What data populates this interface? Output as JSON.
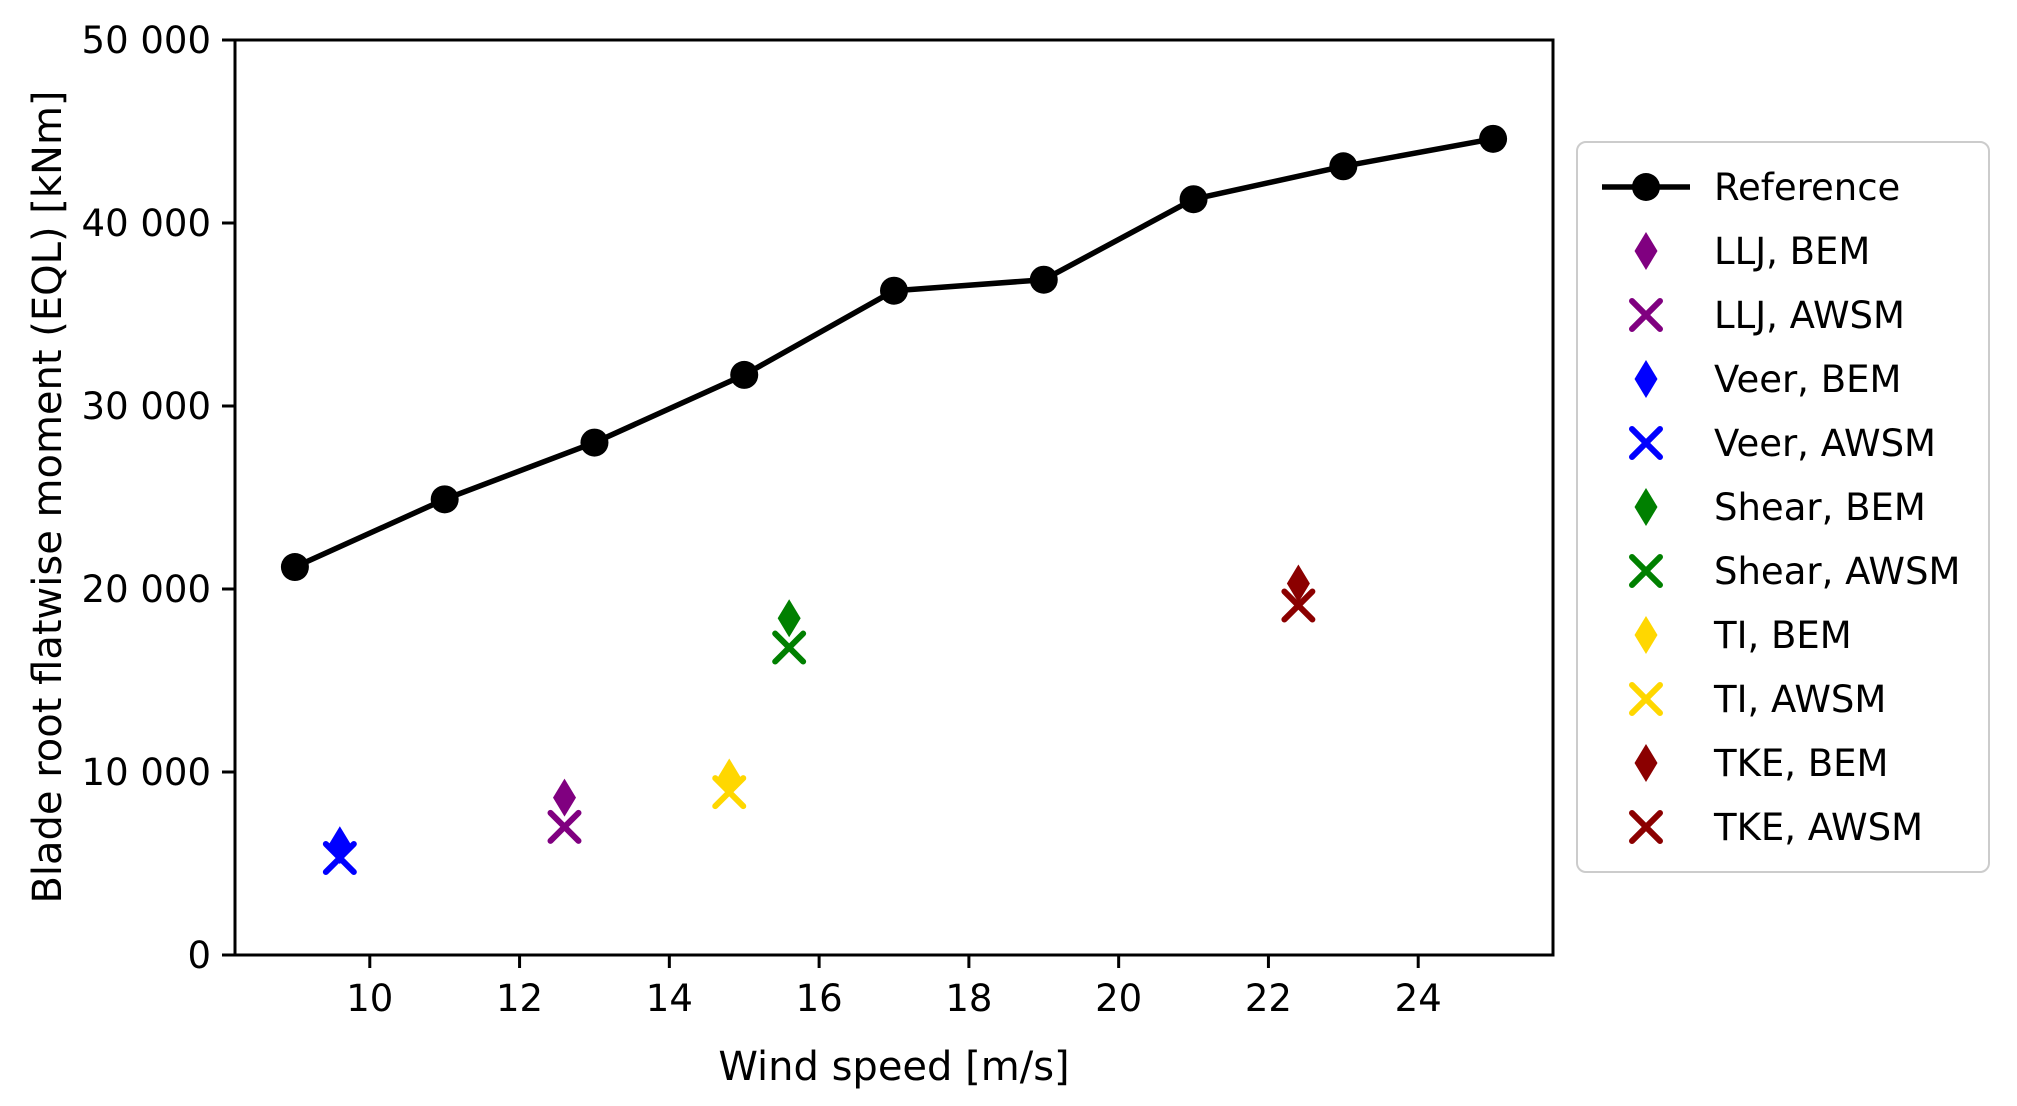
{
  "chart_data": {
    "type": "line",
    "title": "",
    "xlabel": "Wind speed [m/s]",
    "ylabel": "Blade root flatwise moment (EQL) [kNm]",
    "xlim": [
      8.2,
      25.8
    ],
    "ylim": [
      0,
      50000
    ],
    "xticks": [
      10,
      12,
      14,
      16,
      18,
      20,
      22,
      24
    ],
    "xtick_labels": [
      "10",
      "12",
      "14",
      "16",
      "18",
      "20",
      "22",
      "24"
    ],
    "yticks": [
      0,
      10000,
      20000,
      30000,
      40000,
      50000
    ],
    "ytick_labels": [
      "0",
      "10 000",
      "20 000",
      "30 000",
      "40 000",
      "50 000"
    ],
    "grid": false,
    "legend_position": "right",
    "series": [
      {
        "name": "Reference",
        "type": "line",
        "marker": "circle",
        "color": "#000000",
        "x": [
          9,
          11,
          13,
          15,
          17,
          19,
          21,
          23,
          25
        ],
        "y": [
          21200,
          24900,
          28000,
          31700,
          36300,
          36900,
          41300,
          43100,
          44600
        ]
      },
      {
        "name": "LLJ, BEM",
        "type": "scatter",
        "marker": "diamond",
        "color": "#800080",
        "x": [
          12.6
        ],
        "y": [
          8600
        ]
      },
      {
        "name": "LLJ, AWSM",
        "type": "scatter",
        "marker": "x",
        "color": "#800080",
        "x": [
          12.6
        ],
        "y": [
          7000
        ]
      },
      {
        "name": "Veer, BEM",
        "type": "scatter",
        "marker": "diamond",
        "color": "#0000ff",
        "x": [
          9.6
        ],
        "y": [
          6000
        ]
      },
      {
        "name": "Veer, AWSM",
        "type": "scatter",
        "marker": "x",
        "color": "#0000ff",
        "x": [
          9.6
        ],
        "y": [
          5300
        ]
      },
      {
        "name": "Shear, BEM",
        "type": "scatter",
        "marker": "diamond",
        "color": "#008000",
        "x": [
          15.6
        ],
        "y": [
          18400
        ]
      },
      {
        "name": "Shear, AWSM",
        "type": "scatter",
        "marker": "x",
        "color": "#008000",
        "x": [
          15.6
        ],
        "y": [
          16800
        ]
      },
      {
        "name": "TI, BEM",
        "type": "scatter",
        "marker": "diamond",
        "color": "#ffd700",
        "x": [
          14.8
        ],
        "y": [
          9700
        ]
      },
      {
        "name": "TI, AWSM",
        "type": "scatter",
        "marker": "x",
        "color": "#ffd700",
        "x": [
          14.8
        ],
        "y": [
          8900
        ]
      },
      {
        "name": "TKE, BEM",
        "type": "scatter",
        "marker": "diamond",
        "color": "#8b0000",
        "x": [
          22.4
        ],
        "y": [
          20300
        ]
      },
      {
        "name": "TKE, AWSM",
        "type": "scatter",
        "marker": "x",
        "color": "#8b0000",
        "x": [
          22.4
        ],
        "y": [
          19100
        ]
      }
    ]
  }
}
